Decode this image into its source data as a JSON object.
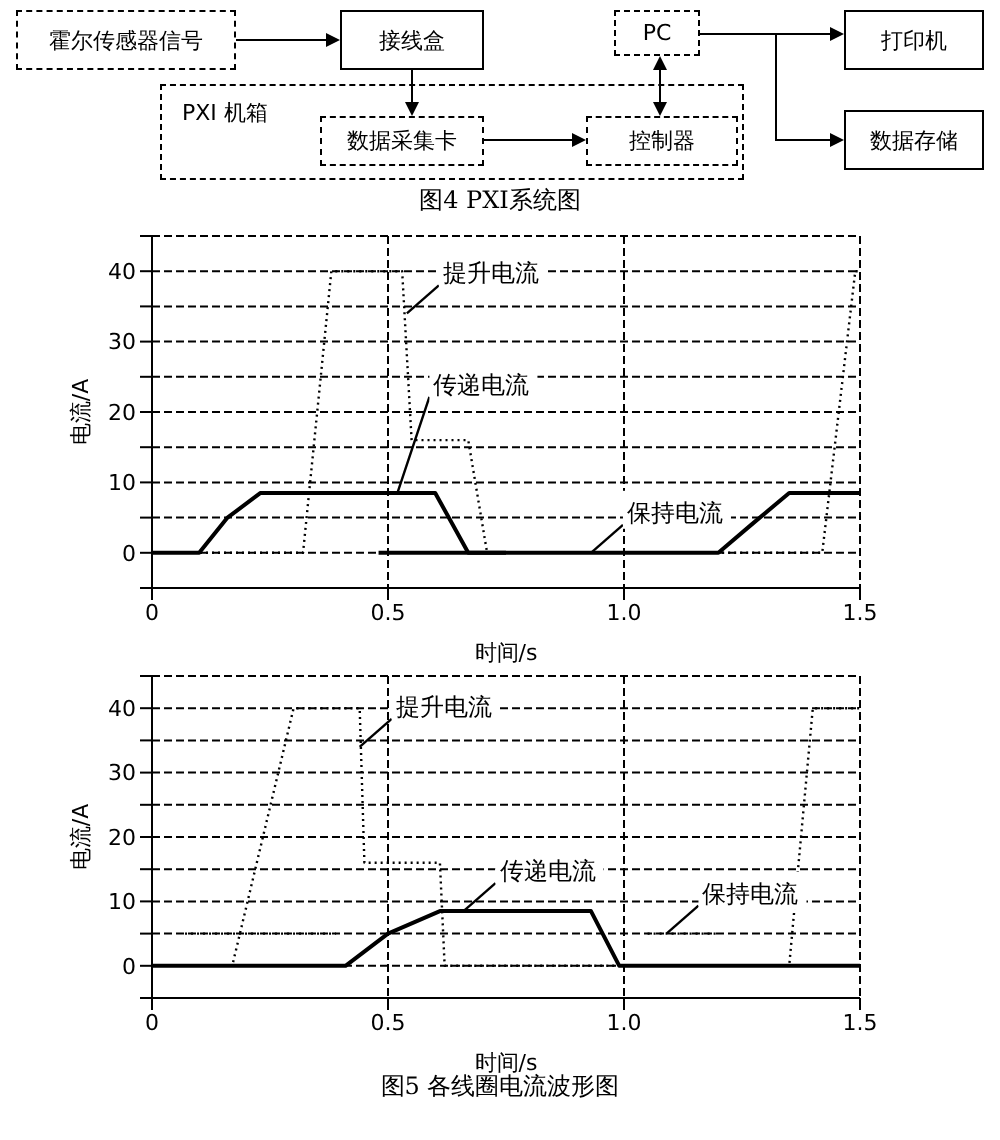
{
  "chart_data": [
    {
      "type": "other",
      "title": "图4 PXI系统图",
      "annotations": [
        "霍尔传感器信号",
        "接线盒",
        "PXI 机箱",
        "数据采集卡",
        "控制器",
        "PC",
        "打印机",
        "数据存储"
      ]
    },
    {
      "type": "line",
      "xlabel": "时间/s",
      "ylabel": "电流/A",
      "xlim": [
        0,
        1.5
      ],
      "xticks": [
        0,
        0.5,
        {
          "value": 1,
          "label": "1.0"
        },
        1.5
      ],
      "ylim": [
        -5,
        45
      ],
      "yticks": [
        {
          "value": -5,
          "label": null
        },
        0,
        {
          "value": 5,
          "label": null
        },
        10,
        {
          "value": 15,
          "label": null
        },
        20,
        {
          "value": 25,
          "label": null
        },
        30,
        {
          "value": 35,
          "label": null
        },
        40,
        {
          "value": 45,
          "label": null
        }
      ],
      "grid": true,
      "marker": "none",
      "series": [
        {
          "color": "#000000",
          "line_style": "dotted",
          "x": [
            0,
            0.32,
            0.38,
            0.53,
            0.55,
            0.67,
            0.71,
            1.42,
            1.49,
            1.5
          ],
          "values": [
            0,
            0,
            40,
            40,
            16,
            16,
            0,
            0,
            40,
            40
          ]
        },
        {
          "color": "#000000",
          "line_style": "solid",
          "x": [
            0,
            0.1,
            0.16,
            0.23,
            0.6,
            0.67,
            0.75
          ],
          "values": [
            0,
            0,
            5,
            8.5,
            8.5,
            0,
            0
          ]
        },
        {
          "color": "#000000",
          "line_style": "solid",
          "x": [
            0.48,
            1.2,
            1.27,
            1.35,
            1.5
          ],
          "values": [
            0,
            0,
            4,
            8.5,
            8.5
          ]
        }
      ],
      "annotations": [
        {
          "text": "提升电流",
          "x": 0.54,
          "y": 34
        },
        {
          "text": "传递电流",
          "x": 0.52,
          "y": 8.5
        },
        {
          "text": "保持电流",
          "x": 0.93,
          "y": 0
        }
      ]
    },
    {
      "type": "line",
      "title": "图5 各线圈电流波形图",
      "xlabel": "时间/s",
      "ylabel": "电流/A",
      "xlim": [
        0,
        1.5
      ],
      "xticks": [
        0,
        0.5,
        {
          "value": 1,
          "label": "1.0"
        },
        1.5
      ],
      "ylim": [
        -5,
        45
      ],
      "yticks": [
        {
          "value": -5,
          "label": null
        },
        0,
        {
          "value": 5,
          "label": null
        },
        10,
        {
          "value": 15,
          "label": null
        },
        20,
        {
          "value": 25,
          "label": null
        },
        30,
        {
          "value": 35,
          "label": null
        },
        40,
        {
          "value": 45,
          "label": null
        }
      ],
      "grid": true,
      "marker": "none",
      "series": [
        {
          "color": "#000000",
          "line_style": "dotted",
          "x": [
            0,
            0.17,
            0.3,
            0.44,
            0.45,
            0.61,
            0.62,
            1.35,
            1.4,
            1.5
          ],
          "values": [
            0,
            0,
            40,
            40,
            16,
            16,
            0,
            0,
            40,
            40
          ]
        },
        {
          "color": "#000000",
          "line_style": "solid",
          "x": [
            0,
            0.41,
            0.5,
            0.61,
            0.93,
            0.99,
            1.5
          ],
          "values": [
            0,
            0,
            5,
            8.5,
            8.5,
            0,
            0
          ]
        },
        {
          "color": "#000000",
          "line_style": "dotted",
          "x": [
            0.07,
            0.39,
            0.7,
            1.05,
            1.2
          ],
          "values": [
            5,
            5,
            null,
            5,
            5
          ]
        }
      ],
      "annotations": [
        {
          "text": "提升电流",
          "x": 0.44,
          "y": 34
        },
        {
          "text": "传递电流",
          "x": 0.66,
          "y": 8.5
        },
        {
          "text": "保持电流",
          "x": 1.09,
          "y": 5
        }
      ]
    }
  ]
}
